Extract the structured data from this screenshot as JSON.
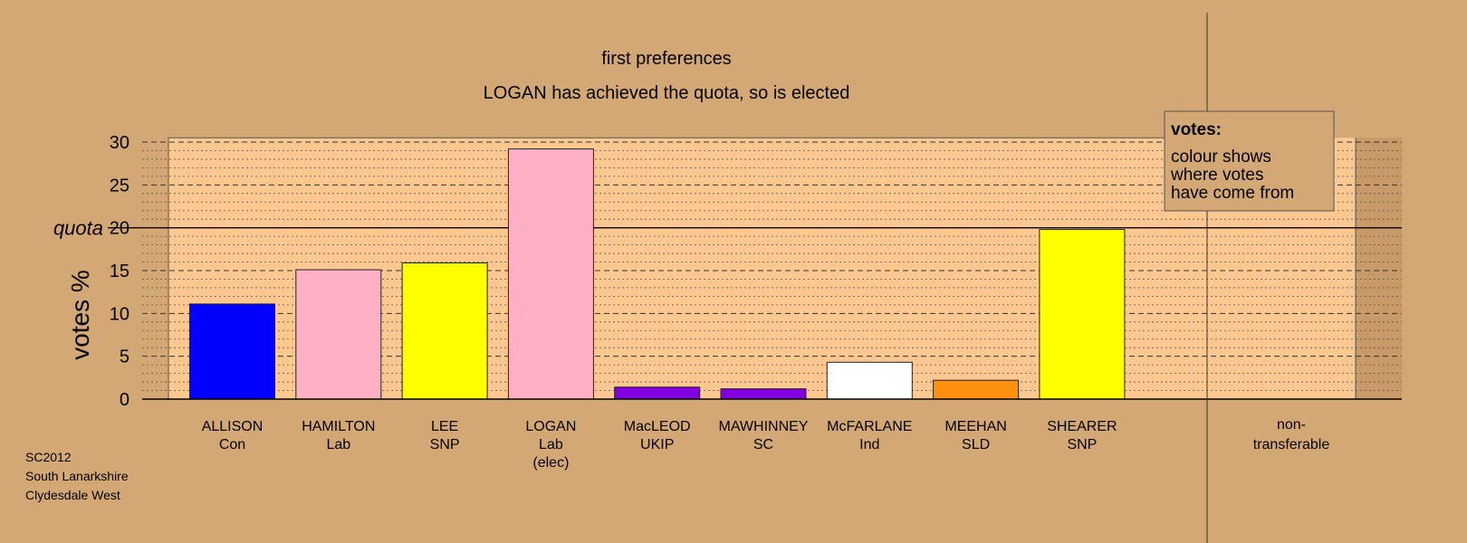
{
  "chart_data": {
    "type": "bar",
    "title": "first preferences",
    "subtitle": "LOGAN has achieved the quota, so is elected",
    "ylabel": "votes %",
    "ylim": [
      0,
      30
    ],
    "yticks": [
      0,
      5,
      10,
      15,
      20,
      25,
      30
    ],
    "quota": {
      "label": "quota",
      "value": 20
    },
    "grid": {
      "major": "dashed every 5",
      "minor": "dotted every 1"
    },
    "categories": [
      {
        "name": "ALLISON",
        "party": "Con",
        "note": "",
        "value": 11.1,
        "color": "#0000FF"
      },
      {
        "name": "HAMILTON",
        "party": "Lab",
        "note": "",
        "value": 15.1,
        "color": "#FFB0C4"
      },
      {
        "name": "LEE",
        "party": "SNP",
        "note": "",
        "value": 15.9,
        "color": "#FFFF00"
      },
      {
        "name": "LOGAN",
        "party": "Lab",
        "note": "(elec)",
        "value": 29.2,
        "color": "#FFB0C4"
      },
      {
        "name": "MacLEOD",
        "party": "UKIP",
        "note": "",
        "value": 1.4,
        "color": "#8000E0"
      },
      {
        "name": "MAWHINNEY",
        "party": "SC",
        "note": "",
        "value": 1.2,
        "color": "#8000E0"
      },
      {
        "name": "McFARLANE",
        "party": "Ind",
        "note": "",
        "value": 4.3,
        "color": "#FFFFFF"
      },
      {
        "name": "MEEHAN",
        "party": "SLD",
        "note": "",
        "value": 2.2,
        "color": "#FF9010"
      },
      {
        "name": "SHEARER",
        "party": "SNP",
        "note": "",
        "value": 19.8,
        "color": "#FFFF00"
      }
    ],
    "non_transferable": {
      "label_line1": "non-",
      "label_line2": "transferable",
      "value": 0
    },
    "legend": {
      "title": "votes:",
      "lines": [
        "colour shows",
        "where votes",
        "have come from"
      ],
      "placement": "top-right"
    },
    "colors": {
      "background": "#D4A874",
      "plot_area": "#FFC890",
      "plot_area_right": "#C89A68"
    }
  },
  "footer": {
    "lines": [
      "SC2012",
      "South Lanarkshire",
      "Clydesdale West"
    ]
  }
}
